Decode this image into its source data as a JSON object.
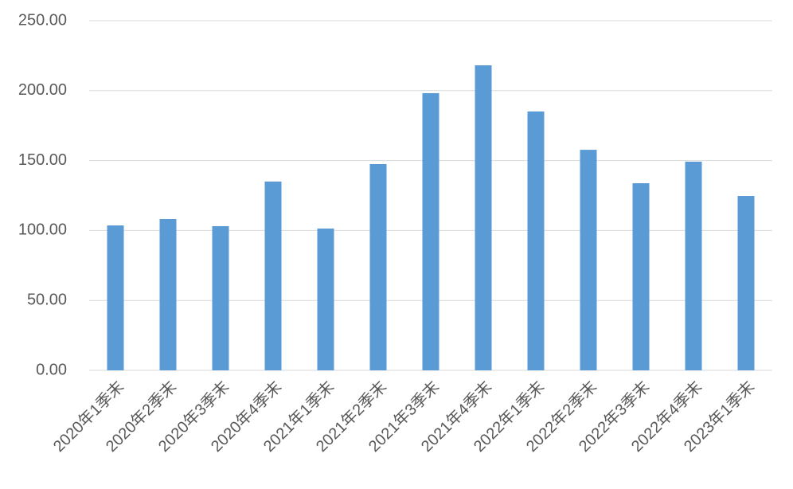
{
  "chart_data": {
    "type": "bar",
    "categories": [
      "2020年1季末",
      "2020年2季末",
      "2020年3季末",
      "2020年4季末",
      "2021年1季末",
      "2021年2季末",
      "2021年3季末",
      "2021年4季末",
      "2022年1季末",
      "2022年2季末",
      "2022年3季末",
      "2022年4季末",
      "2023年1季末"
    ],
    "values": [
      103.6,
      108.2,
      103.1,
      135.0,
      101.4,
      147.5,
      198.2,
      218.1,
      185.1,
      157.7,
      133.8,
      149.2,
      124.7
    ],
    "color": "#5b9bd5",
    "ylim": [
      0,
      250
    ],
    "yticks": [
      {
        "value": 0,
        "label": "0.00"
      },
      {
        "value": 50,
        "label": "50.00"
      },
      {
        "value": 100,
        "label": "100.00"
      },
      {
        "value": 150,
        "label": "150.00"
      },
      {
        "value": 200,
        "label": "200.00"
      },
      {
        "value": 250,
        "label": "250.00"
      }
    ],
    "grid": true
  }
}
